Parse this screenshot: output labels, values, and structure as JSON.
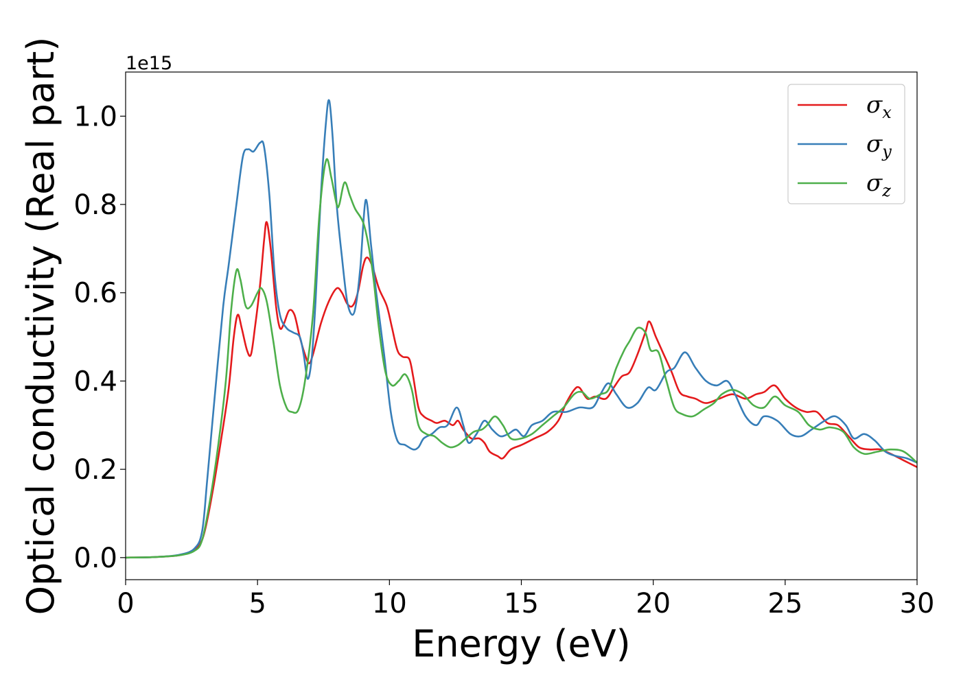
{
  "chart_data": {
    "type": "line",
    "xlabel": "Energy (eV)",
    "ylabel": "Optical conductivity (Real part)",
    "y_offset_label": "1e15",
    "xlim": [
      0,
      30
    ],
    "ylim": [
      -0.05,
      1.1
    ],
    "x_ticks": [
      0,
      5,
      10,
      15,
      20,
      25,
      30
    ],
    "x_tick_labels": [
      "0",
      "5",
      "10",
      "15",
      "20",
      "25",
      "30"
    ],
    "y_ticks": [
      0.0,
      0.2,
      0.4,
      0.6,
      0.8,
      1.0
    ],
    "y_tick_labels": [
      "0.0",
      "0.2",
      "0.4",
      "0.6",
      "0.8",
      "1.0"
    ],
    "grid": false,
    "legend_position": "top-right",
    "series": [
      {
        "name": "σx",
        "sym": "σ",
        "sub": "x",
        "color": "#e41a1c",
        "points": [
          [
            0,
            0
          ],
          [
            1,
            0.001
          ],
          [
            2,
            0.005
          ],
          [
            2.5,
            0.015
          ],
          [
            2.8,
            0.03
          ],
          [
            3.0,
            0.06
          ],
          [
            3.3,
            0.15
          ],
          [
            3.6,
            0.26
          ],
          [
            3.9,
            0.38
          ],
          [
            4.1,
            0.5
          ],
          [
            4.25,
            0.55
          ],
          [
            4.4,
            0.52
          ],
          [
            4.6,
            0.47
          ],
          [
            4.75,
            0.46
          ],
          [
            4.9,
            0.52
          ],
          [
            5.1,
            0.62
          ],
          [
            5.25,
            0.72
          ],
          [
            5.35,
            0.76
          ],
          [
            5.5,
            0.7
          ],
          [
            5.7,
            0.57
          ],
          [
            5.85,
            0.52
          ],
          [
            6.0,
            0.53
          ],
          [
            6.2,
            0.56
          ],
          [
            6.4,
            0.55
          ],
          [
            6.6,
            0.5
          ],
          [
            6.8,
            0.46
          ],
          [
            6.95,
            0.44
          ],
          [
            7.1,
            0.46
          ],
          [
            7.4,
            0.53
          ],
          [
            7.7,
            0.58
          ],
          [
            8.0,
            0.61
          ],
          [
            8.2,
            0.6
          ],
          [
            8.4,
            0.575
          ],
          [
            8.6,
            0.57
          ],
          [
            8.8,
            0.6
          ],
          [
            9.0,
            0.66
          ],
          [
            9.15,
            0.68
          ],
          [
            9.35,
            0.66
          ],
          [
            9.6,
            0.61
          ],
          [
            9.9,
            0.57
          ],
          [
            10.1,
            0.52
          ],
          [
            10.3,
            0.47
          ],
          [
            10.5,
            0.455
          ],
          [
            10.75,
            0.45
          ],
          [
            10.9,
            0.41
          ],
          [
            11.1,
            0.34
          ],
          [
            11.3,
            0.32
          ],
          [
            11.6,
            0.31
          ],
          [
            11.8,
            0.305
          ],
          [
            12.1,
            0.31
          ],
          [
            12.4,
            0.3
          ],
          [
            12.6,
            0.31
          ],
          [
            12.8,
            0.29
          ],
          [
            13.1,
            0.27
          ],
          [
            13.4,
            0.27
          ],
          [
            13.6,
            0.26
          ],
          [
            13.8,
            0.24
          ],
          [
            14.1,
            0.23
          ],
          [
            14.3,
            0.225
          ],
          [
            14.6,
            0.245
          ],
          [
            15.0,
            0.255
          ],
          [
            15.5,
            0.27
          ],
          [
            16.0,
            0.285
          ],
          [
            16.4,
            0.31
          ],
          [
            16.7,
            0.35
          ],
          [
            17.0,
            0.38
          ],
          [
            17.2,
            0.385
          ],
          [
            17.5,
            0.36
          ],
          [
            17.8,
            0.365
          ],
          [
            18.2,
            0.36
          ],
          [
            18.5,
            0.385
          ],
          [
            18.8,
            0.41
          ],
          [
            19.1,
            0.42
          ],
          [
            19.4,
            0.46
          ],
          [
            19.7,
            0.51
          ],
          [
            19.85,
            0.535
          ],
          [
            20.1,
            0.5
          ],
          [
            20.4,
            0.46
          ],
          [
            20.7,
            0.42
          ],
          [
            21.0,
            0.375
          ],
          [
            21.3,
            0.365
          ],
          [
            21.6,
            0.36
          ],
          [
            22.0,
            0.35
          ],
          [
            22.5,
            0.36
          ],
          [
            23.0,
            0.37
          ],
          [
            23.5,
            0.36
          ],
          [
            23.9,
            0.37
          ],
          [
            24.2,
            0.375
          ],
          [
            24.6,
            0.39
          ],
          [
            25.0,
            0.36
          ],
          [
            25.4,
            0.34
          ],
          [
            25.8,
            0.33
          ],
          [
            26.2,
            0.33
          ],
          [
            26.6,
            0.305
          ],
          [
            27.0,
            0.3
          ],
          [
            27.4,
            0.275
          ],
          [
            27.8,
            0.25
          ],
          [
            28.2,
            0.245
          ],
          [
            28.6,
            0.245
          ],
          [
            29.0,
            0.235
          ],
          [
            29.5,
            0.22
          ],
          [
            30,
            0.205
          ]
        ]
      },
      {
        "name": "σy",
        "sym": "σ",
        "sub": "y",
        "color": "#377eb8",
        "points": [
          [
            0,
            0
          ],
          [
            1,
            0.001
          ],
          [
            2,
            0.006
          ],
          [
            2.6,
            0.02
          ],
          [
            2.9,
            0.06
          ],
          [
            3.1,
            0.18
          ],
          [
            3.4,
            0.38
          ],
          [
            3.7,
            0.57
          ],
          [
            3.9,
            0.66
          ],
          [
            4.2,
            0.8
          ],
          [
            4.45,
            0.91
          ],
          [
            4.65,
            0.925
          ],
          [
            4.85,
            0.92
          ],
          [
            5.1,
            0.94
          ],
          [
            5.25,
            0.93
          ],
          [
            5.45,
            0.82
          ],
          [
            5.65,
            0.64
          ],
          [
            5.85,
            0.55
          ],
          [
            6.1,
            0.52
          ],
          [
            6.35,
            0.51
          ],
          [
            6.6,
            0.5
          ],
          [
            6.75,
            0.46
          ],
          [
            6.9,
            0.405
          ],
          [
            7.05,
            0.45
          ],
          [
            7.2,
            0.58
          ],
          [
            7.4,
            0.82
          ],
          [
            7.6,
            0.99
          ],
          [
            7.72,
            1.035
          ],
          [
            7.85,
            0.95
          ],
          [
            8.0,
            0.8
          ],
          [
            8.2,
            0.68
          ],
          [
            8.4,
            0.58
          ],
          [
            8.6,
            0.55
          ],
          [
            8.75,
            0.58
          ],
          [
            8.9,
            0.66
          ],
          [
            9.1,
            0.81
          ],
          [
            9.3,
            0.71
          ],
          [
            9.5,
            0.6
          ],
          [
            9.8,
            0.46
          ],
          [
            10.05,
            0.33
          ],
          [
            10.3,
            0.265
          ],
          [
            10.6,
            0.255
          ],
          [
            10.9,
            0.245
          ],
          [
            11.1,
            0.25
          ],
          [
            11.3,
            0.27
          ],
          [
            11.6,
            0.28
          ],
          [
            11.9,
            0.295
          ],
          [
            12.2,
            0.3
          ],
          [
            12.55,
            0.34
          ],
          [
            12.8,
            0.3
          ],
          [
            13.0,
            0.26
          ],
          [
            13.3,
            0.28
          ],
          [
            13.6,
            0.31
          ],
          [
            13.9,
            0.29
          ],
          [
            14.2,
            0.275
          ],
          [
            14.5,
            0.28
          ],
          [
            14.8,
            0.29
          ],
          [
            15.1,
            0.275
          ],
          [
            15.4,
            0.3
          ],
          [
            15.8,
            0.31
          ],
          [
            16.2,
            0.33
          ],
          [
            16.7,
            0.33
          ],
          [
            17.2,
            0.34
          ],
          [
            17.7,
            0.34
          ],
          [
            18.0,
            0.37
          ],
          [
            18.3,
            0.395
          ],
          [
            18.6,
            0.37
          ],
          [
            19.0,
            0.34
          ],
          [
            19.4,
            0.35
          ],
          [
            19.8,
            0.385
          ],
          [
            20.1,
            0.38
          ],
          [
            20.5,
            0.42
          ],
          [
            20.8,
            0.43
          ],
          [
            21.2,
            0.465
          ],
          [
            21.6,
            0.43
          ],
          [
            22.0,
            0.4
          ],
          [
            22.4,
            0.39
          ],
          [
            22.8,
            0.4
          ],
          [
            23.1,
            0.37
          ],
          [
            23.5,
            0.32
          ],
          [
            23.9,
            0.3
          ],
          [
            24.2,
            0.32
          ],
          [
            24.7,
            0.31
          ],
          [
            25.2,
            0.28
          ],
          [
            25.6,
            0.275
          ],
          [
            26.0,
            0.29
          ],
          [
            26.5,
            0.31
          ],
          [
            26.9,
            0.32
          ],
          [
            27.3,
            0.3
          ],
          [
            27.6,
            0.27
          ],
          [
            28.0,
            0.28
          ],
          [
            28.4,
            0.265
          ],
          [
            28.8,
            0.24
          ],
          [
            29.2,
            0.23
          ],
          [
            29.6,
            0.225
          ],
          [
            30,
            0.215
          ]
        ]
      },
      {
        "name": "σz",
        "sym": "σ",
        "sub": "z",
        "color": "#4daf4a",
        "points": [
          [
            0,
            0
          ],
          [
            1,
            0.001
          ],
          [
            2,
            0.005
          ],
          [
            2.6,
            0.015
          ],
          [
            2.9,
            0.04
          ],
          [
            3.2,
            0.13
          ],
          [
            3.5,
            0.25
          ],
          [
            3.8,
            0.4
          ],
          [
            4.0,
            0.56
          ],
          [
            4.2,
            0.65
          ],
          [
            4.35,
            0.63
          ],
          [
            4.55,
            0.57
          ],
          [
            4.75,
            0.57
          ],
          [
            5.0,
            0.6
          ],
          [
            5.15,
            0.61
          ],
          [
            5.35,
            0.58
          ],
          [
            5.6,
            0.49
          ],
          [
            5.85,
            0.39
          ],
          [
            6.1,
            0.34
          ],
          [
            6.3,
            0.33
          ],
          [
            6.55,
            0.335
          ],
          [
            6.8,
            0.4
          ],
          [
            7.1,
            0.55
          ],
          [
            7.35,
            0.78
          ],
          [
            7.6,
            0.9
          ],
          [
            7.8,
            0.86
          ],
          [
            8.0,
            0.8
          ],
          [
            8.1,
            0.8
          ],
          [
            8.3,
            0.85
          ],
          [
            8.5,
            0.82
          ],
          [
            8.7,
            0.79
          ],
          [
            9.0,
            0.76
          ],
          [
            9.2,
            0.71
          ],
          [
            9.4,
            0.63
          ],
          [
            9.6,
            0.52
          ],
          [
            9.85,
            0.42
          ],
          [
            10.1,
            0.39
          ],
          [
            10.35,
            0.4
          ],
          [
            10.6,
            0.415
          ],
          [
            10.85,
            0.38
          ],
          [
            11.1,
            0.3
          ],
          [
            11.4,
            0.28
          ],
          [
            11.7,
            0.275
          ],
          [
            12.0,
            0.26
          ],
          [
            12.3,
            0.25
          ],
          [
            12.6,
            0.255
          ],
          [
            12.9,
            0.27
          ],
          [
            13.2,
            0.285
          ],
          [
            13.5,
            0.29
          ],
          [
            13.7,
            0.3
          ],
          [
            14.0,
            0.32
          ],
          [
            14.3,
            0.3
          ],
          [
            14.6,
            0.27
          ],
          [
            15.0,
            0.27
          ],
          [
            15.4,
            0.28
          ],
          [
            15.8,
            0.3
          ],
          [
            16.2,
            0.32
          ],
          [
            16.6,
            0.34
          ],
          [
            17.0,
            0.37
          ],
          [
            17.3,
            0.375
          ],
          [
            17.6,
            0.36
          ],
          [
            18.0,
            0.37
          ],
          [
            18.3,
            0.38
          ],
          [
            18.6,
            0.43
          ],
          [
            18.9,
            0.47
          ],
          [
            19.1,
            0.49
          ],
          [
            19.4,
            0.52
          ],
          [
            19.7,
            0.51
          ],
          [
            19.9,
            0.47
          ],
          [
            20.2,
            0.465
          ],
          [
            20.5,
            0.4
          ],
          [
            20.8,
            0.34
          ],
          [
            21.1,
            0.325
          ],
          [
            21.5,
            0.32
          ],
          [
            21.9,
            0.335
          ],
          [
            22.3,
            0.35
          ],
          [
            22.6,
            0.37
          ],
          [
            23.0,
            0.38
          ],
          [
            23.4,
            0.37
          ],
          [
            23.8,
            0.345
          ],
          [
            24.2,
            0.34
          ],
          [
            24.6,
            0.365
          ],
          [
            25.0,
            0.345
          ],
          [
            25.5,
            0.33
          ],
          [
            25.9,
            0.3
          ],
          [
            26.3,
            0.29
          ],
          [
            26.7,
            0.295
          ],
          [
            27.2,
            0.285
          ],
          [
            27.6,
            0.25
          ],
          [
            28.0,
            0.235
          ],
          [
            28.5,
            0.24
          ],
          [
            29.0,
            0.245
          ],
          [
            29.5,
            0.24
          ],
          [
            30,
            0.215
          ]
        ]
      }
    ]
  }
}
